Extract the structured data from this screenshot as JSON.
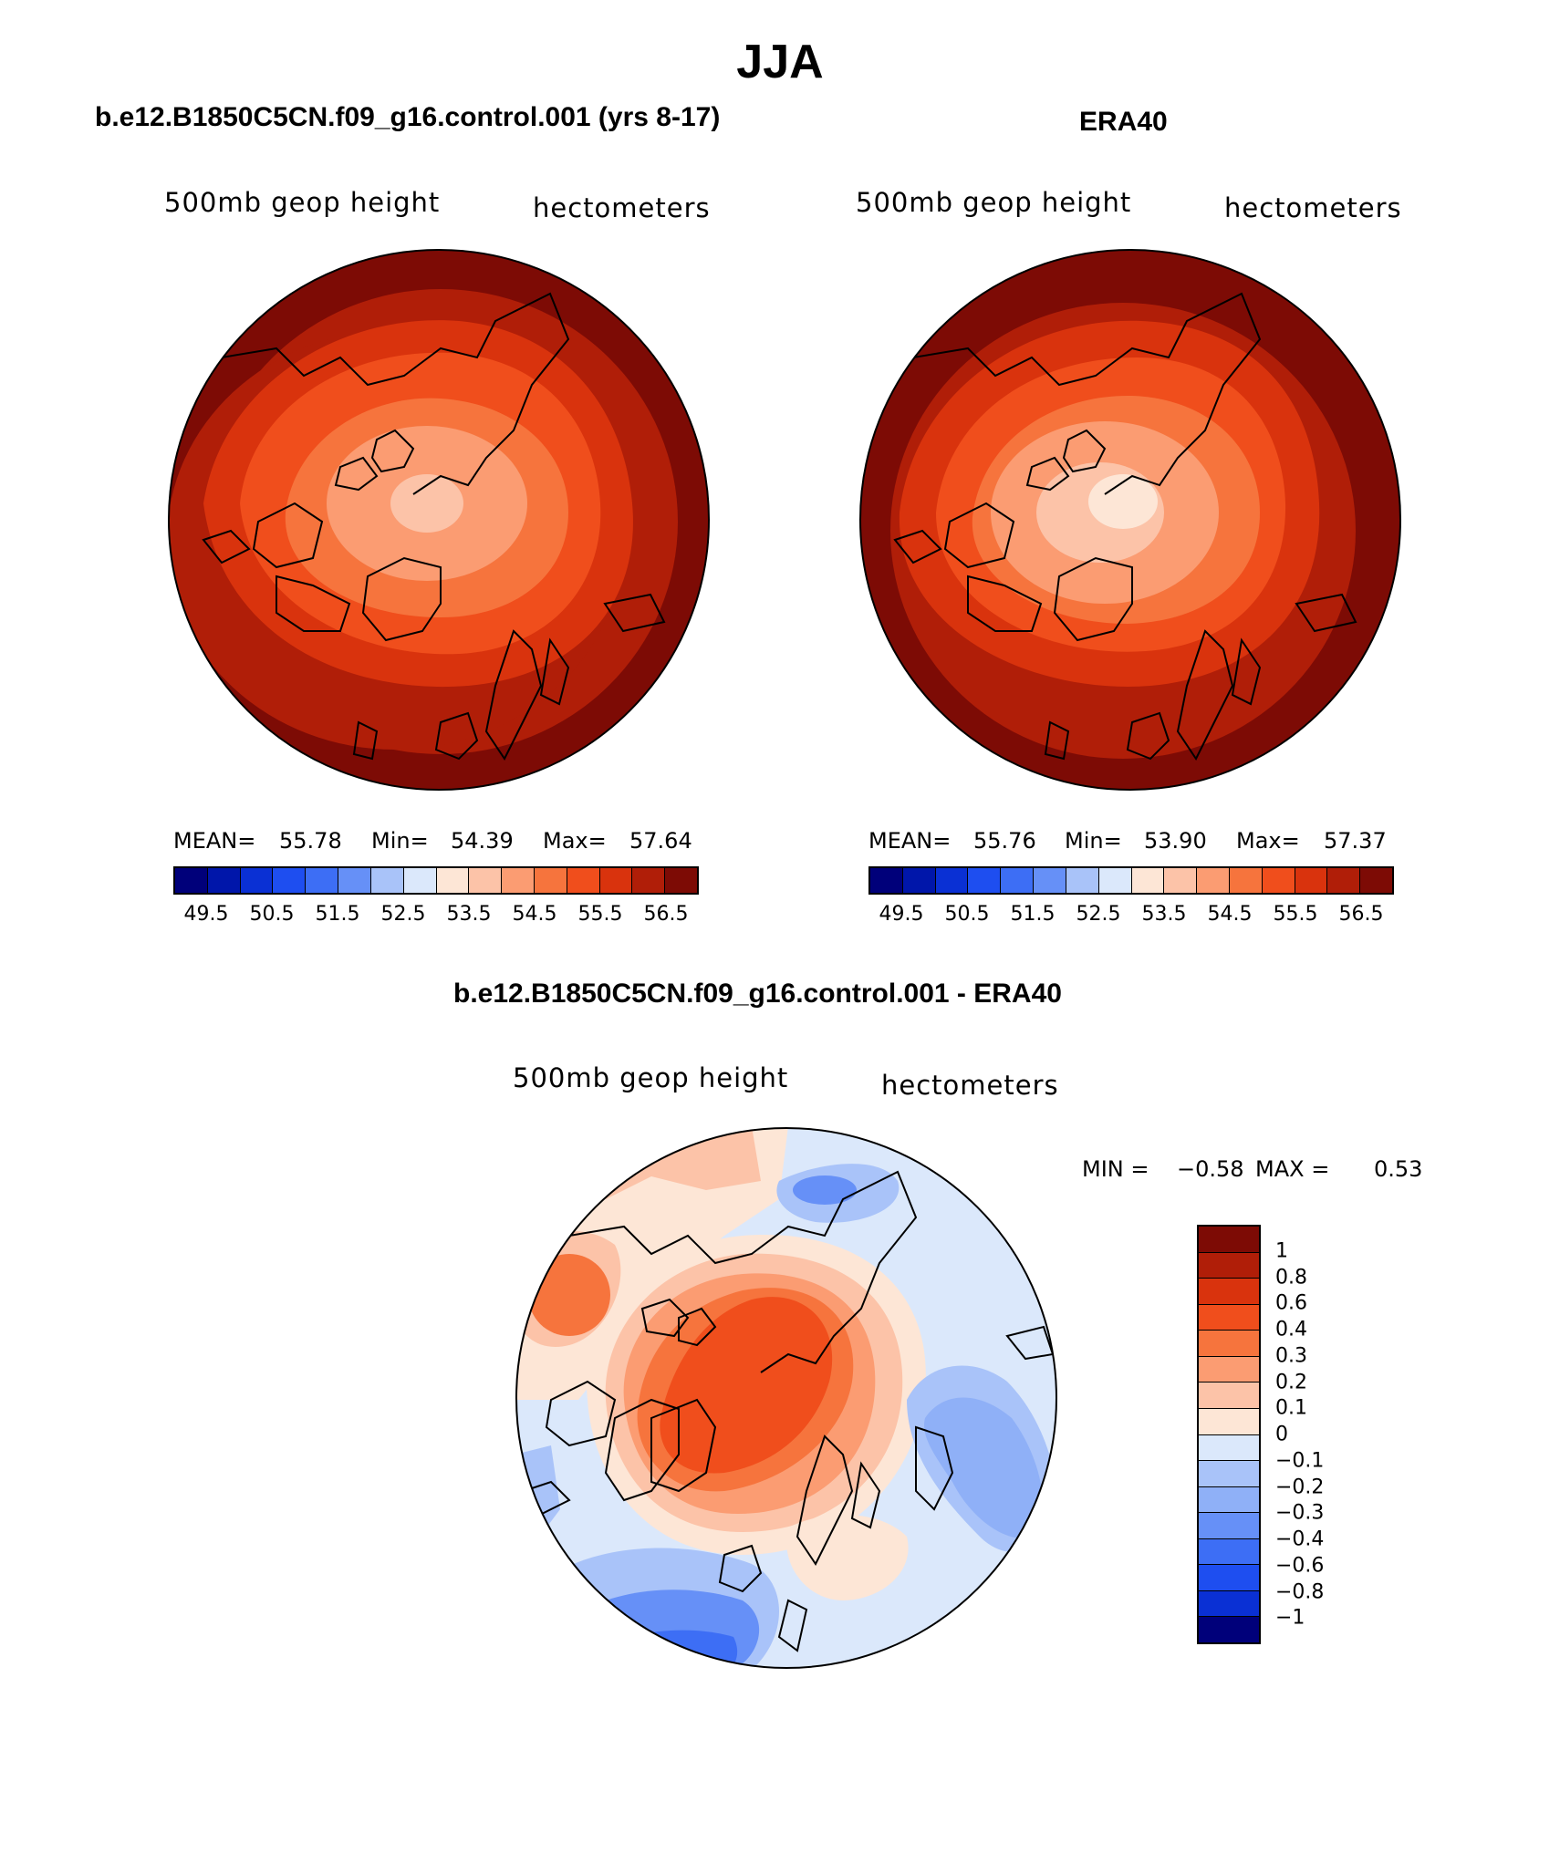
{
  "title": "JJA",
  "panels": [
    {
      "title": "b.e12.B1850C5CN.f09_g16.control.001 (yrs 8-17)",
      "var_label": "500mb geop height",
      "units": "hectometers",
      "stats": {
        "mean_label": "MEAN=",
        "mean": "55.78",
        "min_label": "Min=",
        "min": "54.39",
        "max_label": "Max=",
        "max": "57.64"
      }
    },
    {
      "title": "ERA40",
      "var_label": "500mb geop height",
      "units": "hectometers",
      "stats": {
        "mean_label": "MEAN=",
        "mean": "55.76",
        "min_label": "Min=",
        "min": "53.90",
        "max_label": "Max=",
        "max": "57.37"
      }
    }
  ],
  "diff_panel": {
    "title": "b.e12.B1850C5CN.f09_g16.control.001 - ERA40",
    "var_label": "500mb geop height",
    "units": "hectometers",
    "min_label": "MIN =",
    "min": "−0.58",
    "max_label": "MAX =",
    "max": "0.53"
  },
  "height_colorbar": {
    "colors": [
      "#00007a",
      "#0016aa",
      "#0a30d4",
      "#1e4ef0",
      "#3d6ef5",
      "#6690f7",
      "#a9c3f9",
      "#dbe8fb",
      "#fde6d6",
      "#fcc3a8",
      "#fb9c72",
      "#f6743d",
      "#f04e1c",
      "#d9330d",
      "#b01e08",
      "#7d0b05"
    ],
    "ticks": [
      "49.5",
      "50.5",
      "51.5",
      "52.5",
      "53.5",
      "54.5",
      "55.5",
      "56.5"
    ]
  },
  "diff_colorbar": {
    "colors": [
      "#7d0b05",
      "#b01e08",
      "#d9330d",
      "#f04e1c",
      "#f6743d",
      "#fb9c72",
      "#fcc3a8",
      "#fde6d6",
      "#dbe8fb",
      "#a9c3f9",
      "#8fb0f7",
      "#6690f7",
      "#3d6ef5",
      "#1e4ef0",
      "#0a30d4",
      "#00007a"
    ],
    "ticks": [
      "1",
      "0.8",
      "0.6",
      "0.4",
      "0.3",
      "0.2",
      "0.1",
      "0",
      "−0.1",
      "−0.2",
      "−0.3",
      "−0.4",
      "−0.6",
      "−0.8",
      "−1"
    ]
  }
}
